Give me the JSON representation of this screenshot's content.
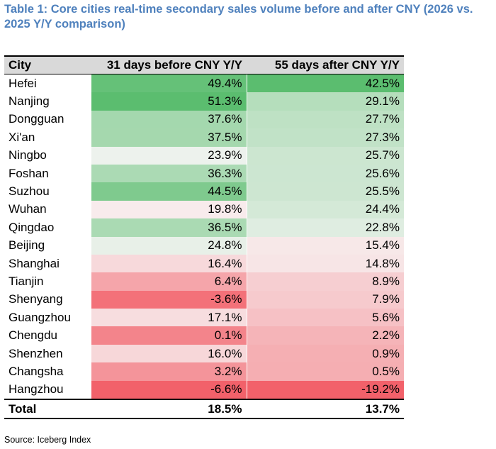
{
  "title": "Table 1: Core cities real-time secondary sales volume before and after CNY (2026 vs. 2025 Y/Y comparison)",
  "source": "Source: Iceberg Index",
  "colors": {
    "title": "#4f81bd",
    "high": "#5bbd6f",
    "mid": "#f8f6f6",
    "low": "#f2616a",
    "header_bg": "#d9d9d9"
  },
  "chart_data": {
    "type": "table",
    "columns": [
      "City",
      "31 days before CNY Y/Y",
      "55 days after CNY Y/Y"
    ],
    "rows": [
      {
        "city": "Hefei",
        "before": "49.4%",
        "after": "42.5%",
        "before_value": 49.4,
        "after_value": 42.5
      },
      {
        "city": "Nanjing",
        "before": "51.3%",
        "after": "29.1%",
        "before_value": 51.3,
        "after_value": 29.1
      },
      {
        "city": "Dongguan",
        "before": "37.6%",
        "after": "27.7%",
        "before_value": 37.6,
        "after_value": 27.7
      },
      {
        "city": "Xi'an",
        "before": "37.5%",
        "after": "27.3%",
        "before_value": 37.5,
        "after_value": 27.3
      },
      {
        "city": "Ningbo",
        "before": "23.9%",
        "after": "25.7%",
        "before_value": 23.9,
        "after_value": 25.7
      },
      {
        "city": "Foshan",
        "before": "36.3%",
        "after": "25.6%",
        "before_value": 36.3,
        "after_value": 25.6
      },
      {
        "city": "Suzhou",
        "before": "44.5%",
        "after": "25.5%",
        "before_value": 44.5,
        "after_value": 25.5
      },
      {
        "city": "Wuhan",
        "before": "19.8%",
        "after": "24.4%",
        "before_value": 19.8,
        "after_value": 24.4
      },
      {
        "city": "Qingdao",
        "before": "36.5%",
        "after": "22.8%",
        "before_value": 36.5,
        "after_value": 22.8
      },
      {
        "city": "Beijing",
        "before": "24.8%",
        "after": "15.4%",
        "before_value": 24.8,
        "after_value": 15.4
      },
      {
        "city": "Shanghai",
        "before": "16.4%",
        "after": "14.8%",
        "before_value": 16.4,
        "after_value": 14.8
      },
      {
        "city": "Tianjin",
        "before": "6.4%",
        "after": "8.9%",
        "before_value": 6.4,
        "after_value": 8.9
      },
      {
        "city": "Shenyang",
        "before": "-3.6%",
        "after": "7.9%",
        "before_value": -3.6,
        "after_value": 7.9
      },
      {
        "city": "Guangzhou",
        "before": "17.1%",
        "after": "5.6%",
        "before_value": 17.1,
        "after_value": 5.6
      },
      {
        "city": "Chengdu",
        "before": "0.1%",
        "after": "2.2%",
        "before_value": 0.1,
        "after_value": 2.2
      },
      {
        "city": "Shenzhen",
        "before": "16.0%",
        "after": "0.9%",
        "before_value": 16.0,
        "after_value": 0.9
      },
      {
        "city": "Changsha",
        "before": "3.2%",
        "after": "0.5%",
        "before_value": 3.2,
        "after_value": 0.5
      },
      {
        "city": "Hangzhou",
        "before": "-6.6%",
        "after": "-19.2%",
        "before_value": -6.6,
        "after_value": -19.2
      }
    ],
    "total": {
      "label": "Total",
      "before": "18.5%",
      "after": "13.7%"
    }
  }
}
